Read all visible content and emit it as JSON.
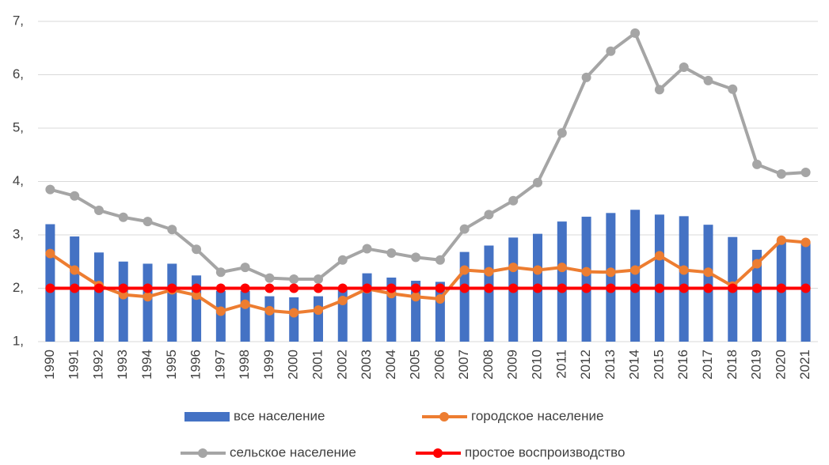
{
  "chart_data": {
    "type": "combo",
    "categories": [
      "1990",
      "1991",
      "1992",
      "1993",
      "1994",
      "1995",
      "1996",
      "1997",
      "1998",
      "1999",
      "2000",
      "2001",
      "2002",
      "2003",
      "2004",
      "2005",
      "2006",
      "2007",
      "2008",
      "2009",
      "2010",
      "2011",
      "2012",
      "2013",
      "2014",
      "2015",
      "2016",
      "2017",
      "2018",
      "2019",
      "2020",
      "2021"
    ],
    "series": [
      {
        "name": "все население",
        "type": "bar",
        "color": "#4472c4",
        "values": [
          3.2,
          2.97,
          2.67,
          2.5,
          2.46,
          2.46,
          2.24,
          1.95,
          1.95,
          1.85,
          1.83,
          1.85,
          1.98,
          2.28,
          2.2,
          2.14,
          2.12,
          2.68,
          2.8,
          2.95,
          3.02,
          3.25,
          3.34,
          3.41,
          3.47,
          3.38,
          3.35,
          3.19,
          2.96,
          2.72,
          2.9,
          2.85
        ]
      },
      {
        "name": "городское население",
        "type": "line",
        "color": "#ed7d31",
        "values": [
          2.65,
          2.34,
          2.05,
          1.88,
          1.84,
          1.97,
          1.87,
          1.57,
          1.7,
          1.58,
          1.54,
          1.59,
          1.77,
          1.99,
          1.9,
          1.84,
          1.8,
          2.34,
          2.31,
          2.39,
          2.34,
          2.39,
          2.31,
          2.3,
          2.34,
          2.61,
          2.34,
          2.3,
          2.04,
          2.46,
          2.9,
          2.86
        ]
      },
      {
        "name": "сельское население",
        "type": "line",
        "color": "#a5a5a5",
        "values": [
          3.85,
          3.73,
          3.46,
          3.33,
          3.25,
          3.1,
          2.73,
          2.3,
          2.39,
          2.19,
          2.17,
          2.17,
          2.53,
          2.74,
          2.66,
          2.58,
          2.53,
          3.11,
          3.38,
          3.64,
          3.98,
          4.91,
          5.95,
          6.44,
          6.78,
          5.72,
          6.14,
          5.89,
          5.73,
          4.32,
          4.14,
          4.17
        ]
      },
      {
        "name": "простое воспроизводство",
        "type": "line",
        "color": "#ff0000",
        "values": [
          2,
          2,
          2,
          2,
          2,
          2,
          2,
          2,
          2,
          2,
          2,
          2,
          2,
          2,
          2,
          2,
          2,
          2,
          2,
          2,
          2,
          2,
          2,
          2,
          2,
          2,
          2,
          2,
          2,
          2,
          2,
          2
        ]
      }
    ],
    "ylim": [
      1,
      7
    ],
    "yticks": [
      {
        "value": 1,
        "label": "1,"
      },
      {
        "value": 2,
        "label": "2,"
      },
      {
        "value": 3,
        "label": "3,"
      },
      {
        "value": 4,
        "label": "4,"
      },
      {
        "value": 5,
        "label": "5,"
      },
      {
        "value": 6,
        "label": "6,"
      },
      {
        "value": 7,
        "label": "7,"
      }
    ],
    "grid": true
  }
}
